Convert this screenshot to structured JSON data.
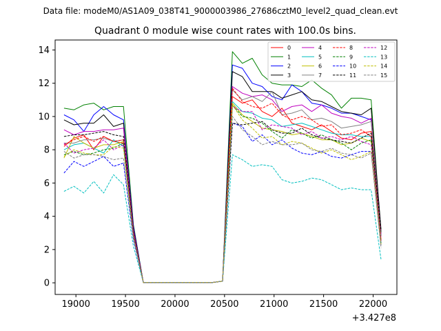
{
  "chart_data": {
    "type": "line",
    "suptitle": "Data file: modeM0/AS1A09_038T41_9000003986_27686cztM0_level2_quad_clean.evt",
    "title": "Quadrant 0 module wise count rates with 100.0s bins.",
    "xlabel": "",
    "ylabel": "",
    "x_offset_label": "+3.427e8",
    "xlim": [
      18790,
      22240
    ],
    "ylim": [
      -0.7,
      14.6
    ],
    "x_ticks": [
      19000,
      19500,
      20000,
      20500,
      21000,
      21500,
      22000
    ],
    "y_ticks": [
      0,
      2,
      4,
      6,
      8,
      10,
      12,
      14
    ],
    "legend_position": "top-right",
    "x": [
      18880,
      18980,
      19080,
      19180,
      19280,
      19380,
      19480,
      19580,
      19680,
      19780,
      19880,
      19980,
      20080,
      20180,
      20280,
      20380,
      20480,
      20580,
      20680,
      20780,
      20880,
      20980,
      21080,
      21180,
      21280,
      21380,
      21480,
      21580,
      21680,
      21780,
      21880,
      21980,
      22080
    ],
    "series": [
      {
        "name": "0",
        "color": "#ff0000",
        "dash": "solid",
        "values": [
          8.2,
          8.7,
          8.9,
          8.0,
          8.8,
          8.5,
          8.4,
          3.0,
          0.02,
          0.02,
          0.02,
          0.02,
          0.02,
          0.02,
          0.02,
          0.02,
          0.1,
          11.2,
          10.8,
          11.0,
          10.3,
          10.0,
          10.5,
          9.6,
          9.4,
          9.2,
          9.5,
          9.1,
          8.7,
          8.6,
          9.0,
          9.1,
          2.6
        ]
      },
      {
        "name": "1",
        "color": "#008000",
        "dash": "solid",
        "values": [
          10.5,
          10.4,
          10.7,
          10.8,
          10.4,
          10.6,
          10.6,
          3.5,
          0.02,
          0.02,
          0.02,
          0.02,
          0.02,
          0.02,
          0.02,
          0.02,
          0.1,
          13.9,
          13.2,
          13.5,
          12.5,
          12.0,
          11.9,
          11.9,
          11.8,
          12.2,
          11.7,
          11.3,
          10.5,
          11.1,
          11.1,
          11.0,
          3.0
        ]
      },
      {
        "name": "2",
        "color": "#0000ff",
        "dash": "solid",
        "values": [
          10.1,
          9.8,
          9.1,
          10.1,
          10.6,
          10.1,
          9.8,
          3.4,
          0.02,
          0.02,
          0.02,
          0.02,
          0.02,
          0.02,
          0.02,
          0.02,
          0.1,
          13.1,
          12.9,
          12.0,
          11.8,
          11.2,
          11.0,
          11.9,
          11.5,
          10.8,
          10.7,
          10.5,
          10.2,
          10.2,
          10.0,
          9.8,
          2.8
        ]
      },
      {
        "name": "3",
        "color": "#000000",
        "dash": "solid",
        "values": [
          9.8,
          9.5,
          9.6,
          9.6,
          10.1,
          9.4,
          9.6,
          3.3,
          0.02,
          0.02,
          0.02,
          0.02,
          0.02,
          0.02,
          0.02,
          0.02,
          0.1,
          12.7,
          12.4,
          11.5,
          11.5,
          11.5,
          11.1,
          11.3,
          11.5,
          11.0,
          10.9,
          10.6,
          10.3,
          10.2,
          10.1,
          10.5,
          3.2
        ]
      },
      {
        "name": "4",
        "color": "#bf00bf",
        "dash": "solid",
        "values": [
          9.2,
          8.9,
          9.1,
          9.1,
          9.2,
          9.2,
          9.3,
          3.2,
          0.02,
          0.02,
          0.02,
          0.02,
          0.02,
          0.02,
          0.02,
          0.02,
          0.1,
          11.8,
          11.4,
          11.2,
          11.3,
          11.0,
          10.3,
          10.6,
          10.7,
          10.3,
          10.7,
          10.2,
          10.0,
          9.9,
          9.6,
          9.9,
          2.9
        ]
      },
      {
        "name": "5",
        "color": "#00bfbf",
        "dash": "solid",
        "values": [
          8.0,
          8.3,
          8.4,
          8.1,
          7.8,
          8.6,
          8.2,
          3.0,
          0.02,
          0.02,
          0.02,
          0.02,
          0.02,
          0.02,
          0.02,
          0.02,
          0.1,
          10.9,
          10.3,
          10.2,
          9.9,
          9.8,
          9.4,
          9.5,
          9.6,
          9.4,
          9.2,
          9.0,
          8.9,
          8.9,
          8.8,
          8.8,
          2.4
        ]
      },
      {
        "name": "6",
        "color": "#bfbf00",
        "dash": "solid",
        "values": [
          7.5,
          8.8,
          8.4,
          8.1,
          8.3,
          8.3,
          8.5,
          2.9,
          0.02,
          0.02,
          0.02,
          0.02,
          0.02,
          0.02,
          0.02,
          0.02,
          0.1,
          10.8,
          10.1,
          9.7,
          9.3,
          9.2,
          9.1,
          8.9,
          9.0,
          8.8,
          8.6,
          8.6,
          8.3,
          8.4,
          8.7,
          8.5,
          2.5
        ]
      },
      {
        "name": "7",
        "color": "#808080",
        "dash": "solid",
        "values": [
          8.4,
          8.4,
          8.6,
          8.6,
          8.7,
          8.5,
          8.6,
          3.0,
          0.02,
          0.02,
          0.02,
          0.02,
          0.02,
          0.02,
          0.02,
          0.02,
          0.1,
          11.6,
          11.0,
          11.2,
          10.9,
          11.5,
          10.1,
          10.2,
          10.4,
          9.8,
          9.9,
          9.7,
          9.3,
          9.4,
          9.5,
          9.7,
          2.8
        ]
      },
      {
        "name": "8",
        "color": "#ff0000",
        "dash": "dashed",
        "values": [
          8.3,
          8.6,
          8.8,
          8.5,
          8.8,
          8.5,
          8.6,
          3.1,
          0.02,
          0.02,
          0.02,
          0.02,
          0.02,
          0.02,
          0.02,
          0.02,
          0.1,
          11.7,
          10.9,
          10.6,
          10.5,
          10.8,
          10.1,
          9.8,
          10.0,
          9.8,
          9.4,
          9.5,
          8.9,
          9.0,
          9.2,
          8.8,
          2.6
        ]
      },
      {
        "name": "9",
        "color": "#008000",
        "dash": "dashed",
        "values": [
          7.7,
          7.9,
          7.7,
          7.8,
          8.0,
          8.1,
          8.4,
          2.9,
          0.02,
          0.02,
          0.02,
          0.02,
          0.02,
          0.02,
          0.02,
          0.02,
          0.1,
          10.7,
          10.0,
          9.9,
          9.6,
          9.1,
          8.7,
          9.2,
          9.0,
          8.7,
          8.9,
          8.6,
          8.4,
          8.0,
          8.4,
          8.6,
          2.4
        ]
      },
      {
        "name": "10",
        "color": "#0000ff",
        "dash": "dashed",
        "values": [
          6.6,
          7.3,
          7.0,
          7.3,
          7.6,
          7.0,
          7.2,
          2.6,
          0.02,
          0.02,
          0.02,
          0.02,
          0.02,
          0.02,
          0.02,
          0.02,
          0.1,
          9.6,
          9.4,
          8.5,
          8.9,
          8.3,
          8.6,
          8.1,
          7.8,
          7.7,
          7.9,
          7.6,
          7.5,
          7.7,
          7.9,
          7.9,
          2.2
        ]
      },
      {
        "name": "11",
        "color": "#000000",
        "dash": "dashed",
        "values": [
          8.8,
          8.9,
          8.9,
          9.0,
          9.1,
          8.9,
          8.8,
          3.1,
          0.02,
          0.02,
          0.02,
          0.02,
          0.02,
          0.02,
          0.02,
          0.02,
          0.1,
          9.6,
          9.5,
          9.6,
          9.7,
          9.2,
          9.0,
          9.0,
          9.3,
          8.9,
          8.7,
          8.6,
          8.5,
          8.4,
          8.7,
          9.0,
          3.1
        ]
      },
      {
        "name": "12",
        "color": "#bf00bf",
        "dash": "dashed",
        "values": [
          8.4,
          7.8,
          8.0,
          8.1,
          8.6,
          8.0,
          8.3,
          3.0,
          0.02,
          0.02,
          0.02,
          0.02,
          0.02,
          0.02,
          0.02,
          0.02,
          0.1,
          10.6,
          10.3,
          10.3,
          9.2,
          9.5,
          9.4,
          9.3,
          8.9,
          9.1,
          8.7,
          8.8,
          8.6,
          8.8,
          8.5,
          8.3,
          2.5
        ]
      },
      {
        "name": "13",
        "color": "#00bfbf",
        "dash": "dashed",
        "values": [
          5.5,
          5.8,
          5.4,
          6.1,
          5.4,
          6.5,
          5.9,
          2.2,
          0.02,
          0.02,
          0.02,
          0.02,
          0.02,
          0.02,
          0.02,
          0.02,
          0.1,
          7.7,
          7.4,
          7.0,
          7.1,
          7.0,
          6.2,
          6.0,
          6.1,
          6.3,
          6.2,
          5.9,
          5.6,
          5.7,
          5.6,
          5.6,
          1.4
        ]
      },
      {
        "name": "14",
        "color": "#bfbf00",
        "dash": "dashed",
        "values": [
          7.6,
          8.0,
          7.8,
          7.7,
          7.7,
          8.2,
          8.1,
          2.8,
          0.02,
          0.02,
          0.02,
          0.02,
          0.02,
          0.02,
          0.02,
          0.02,
          0.1,
          10.7,
          9.8,
          9.3,
          8.7,
          8.8,
          8.3,
          8.5,
          8.4,
          8.1,
          7.8,
          8.0,
          7.7,
          7.4,
          7.6,
          7.9,
          2.3
        ]
      },
      {
        "name": "15",
        "color": "#808080",
        "dash": "dashed",
        "values": [
          7.9,
          7.5,
          7.7,
          7.7,
          7.6,
          7.4,
          7.5,
          2.7,
          0.02,
          0.02,
          0.02,
          0.02,
          0.02,
          0.02,
          0.02,
          0.02,
          0.1,
          10.0,
          9.2,
          8.8,
          8.3,
          8.5,
          8.3,
          8.3,
          8.4,
          8.0,
          7.9,
          8.1,
          7.8,
          7.7,
          7.5,
          7.8,
          2.1
        ]
      }
    ]
  }
}
